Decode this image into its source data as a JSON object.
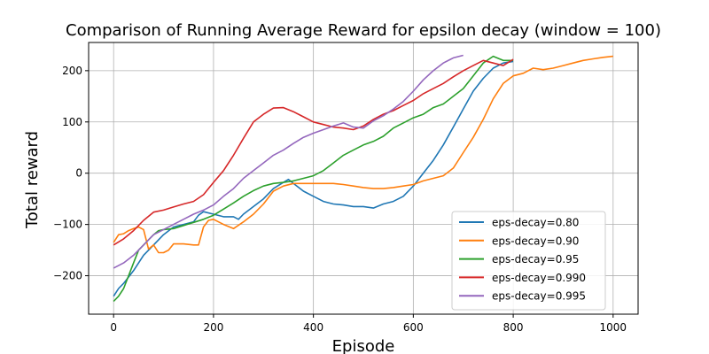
{
  "chart_data": {
    "type": "line",
    "title": "Comparison of Running Average Reward for epsilon decay (window = 100)",
    "xlabel": "Episode",
    "ylabel": "Total reward",
    "xlim": [
      -50,
      1050
    ],
    "ylim": [
      -275,
      255
    ],
    "xticks": [
      0,
      200,
      400,
      600,
      800,
      1000
    ],
    "xtick_labels": [
      "0",
      "200",
      "400",
      "600",
      "800",
      "1000"
    ],
    "yticks": [
      -200,
      -100,
      0,
      100,
      200
    ],
    "ytick_labels": [
      "−200",
      "−100",
      "0",
      "100",
      "200"
    ],
    "grid": true,
    "legend_position": "lower-right",
    "series": [
      {
        "name": "eps-decay=0.80",
        "color": "#1f77b4",
        "x": [
          0,
          10,
          20,
          40,
          60,
          80,
          100,
          120,
          140,
          160,
          170,
          180,
          200,
          220,
          240,
          250,
          260,
          280,
          300,
          320,
          340,
          350,
          360,
          380,
          400,
          420,
          440,
          460,
          480,
          500,
          520,
          540,
          560,
          580,
          600,
          620,
          640,
          660,
          680,
          700,
          720,
          740,
          760,
          780,
          800
        ],
        "y": [
          -240,
          -225,
          -215,
          -190,
          -160,
          -140,
          -120,
          -105,
          -100,
          -95,
          -82,
          -75,
          -80,
          -85,
          -85,
          -90,
          -80,
          -65,
          -50,
          -30,
          -18,
          -12,
          -20,
          -35,
          -45,
          -55,
          -60,
          -62,
          -65,
          -65,
          -68,
          -60,
          -55,
          -45,
          -25,
          0,
          25,
          55,
          90,
          125,
          160,
          185,
          205,
          215,
          218
        ]
      },
      {
        "name": "eps-decay=0.90",
        "color": "#ff7f0e",
        "x": [
          0,
          10,
          20,
          30,
          40,
          50,
          60,
          70,
          80,
          90,
          100,
          110,
          120,
          140,
          160,
          170,
          180,
          190,
          200,
          220,
          240,
          260,
          280,
          300,
          320,
          340,
          360,
          380,
          400,
          420,
          440,
          460,
          480,
          500,
          520,
          540,
          560,
          580,
          600,
          620,
          640,
          660,
          680,
          700,
          720,
          740,
          760,
          780,
          800,
          820,
          840,
          860,
          880,
          900,
          920,
          940,
          960,
          980,
          1000
        ],
        "y": [
          -135,
          -120,
          -118,
          -112,
          -108,
          -105,
          -110,
          -148,
          -140,
          -155,
          -155,
          -150,
          -138,
          -138,
          -140,
          -140,
          -105,
          -92,
          -90,
          -100,
          -108,
          -95,
          -80,
          -60,
          -35,
          -25,
          -20,
          -20,
          -20,
          -20,
          -20,
          -22,
          -25,
          -28,
          -30,
          -30,
          -28,
          -25,
          -22,
          -15,
          -10,
          -5,
          10,
          40,
          70,
          105,
          145,
          175,
          190,
          195,
          205,
          202,
          205,
          210,
          215,
          220,
          223,
          226,
          228
        ]
      },
      {
        "name": "eps-decay=0.95",
        "color": "#2ca02c",
        "x": [
          0,
          10,
          20,
          30,
          40,
          50,
          60,
          70,
          80,
          90,
          100,
          120,
          140,
          160,
          180,
          200,
          220,
          240,
          260,
          280,
          300,
          320,
          340,
          360,
          380,
          400,
          420,
          440,
          460,
          480,
          500,
          520,
          540,
          560,
          580,
          600,
          620,
          640,
          660,
          680,
          700,
          720,
          740,
          760,
          780,
          800
        ],
        "y": [
          -250,
          -240,
          -225,
          -200,
          -175,
          -150,
          -140,
          -130,
          -120,
          -112,
          -110,
          -108,
          -102,
          -96,
          -90,
          -82,
          -70,
          -58,
          -45,
          -34,
          -25,
          -20,
          -18,
          -15,
          -10,
          -5,
          5,
          20,
          35,
          45,
          55,
          62,
          72,
          88,
          98,
          108,
          115,
          128,
          135,
          150,
          165,
          190,
          215,
          228,
          220,
          220
        ]
      },
      {
        "name": "eps-decay=0.990",
        "color": "#d62728",
        "x": [
          0,
          20,
          40,
          60,
          80,
          100,
          120,
          140,
          160,
          180,
          200,
          220,
          240,
          260,
          280,
          300,
          320,
          340,
          360,
          380,
          400,
          420,
          440,
          460,
          480,
          500,
          520,
          540,
          560,
          580,
          600,
          620,
          640,
          660,
          680,
          700,
          720,
          740,
          760,
          780,
          800
        ],
        "y": [
          -140,
          -128,
          -112,
          -92,
          -76,
          -72,
          -66,
          -60,
          -55,
          -42,
          -18,
          5,
          35,
          68,
          100,
          115,
          127,
          128,
          120,
          110,
          100,
          95,
          90,
          88,
          85,
          92,
          105,
          115,
          122,
          132,
          142,
          155,
          165,
          175,
          188,
          200,
          210,
          220,
          215,
          210,
          222
        ]
      },
      {
        "name": "eps-decay=0.995",
        "color": "#9467bd",
        "x": [
          0,
          20,
          40,
          60,
          80,
          100,
          120,
          140,
          160,
          180,
          200,
          220,
          240,
          260,
          280,
          300,
          320,
          340,
          360,
          380,
          400,
          420,
          440,
          460,
          480,
          500,
          520,
          540,
          560,
          580,
          600,
          620,
          640,
          660,
          680,
          700
        ],
        "y": [
          -185,
          -175,
          -160,
          -140,
          -120,
          -110,
          -100,
          -90,
          -80,
          -72,
          -62,
          -45,
          -30,
          -10,
          5,
          20,
          35,
          45,
          58,
          70,
          78,
          85,
          92,
          98,
          90,
          88,
          102,
          112,
          125,
          140,
          160,
          182,
          200,
          215,
          225,
          230
        ]
      }
    ]
  }
}
